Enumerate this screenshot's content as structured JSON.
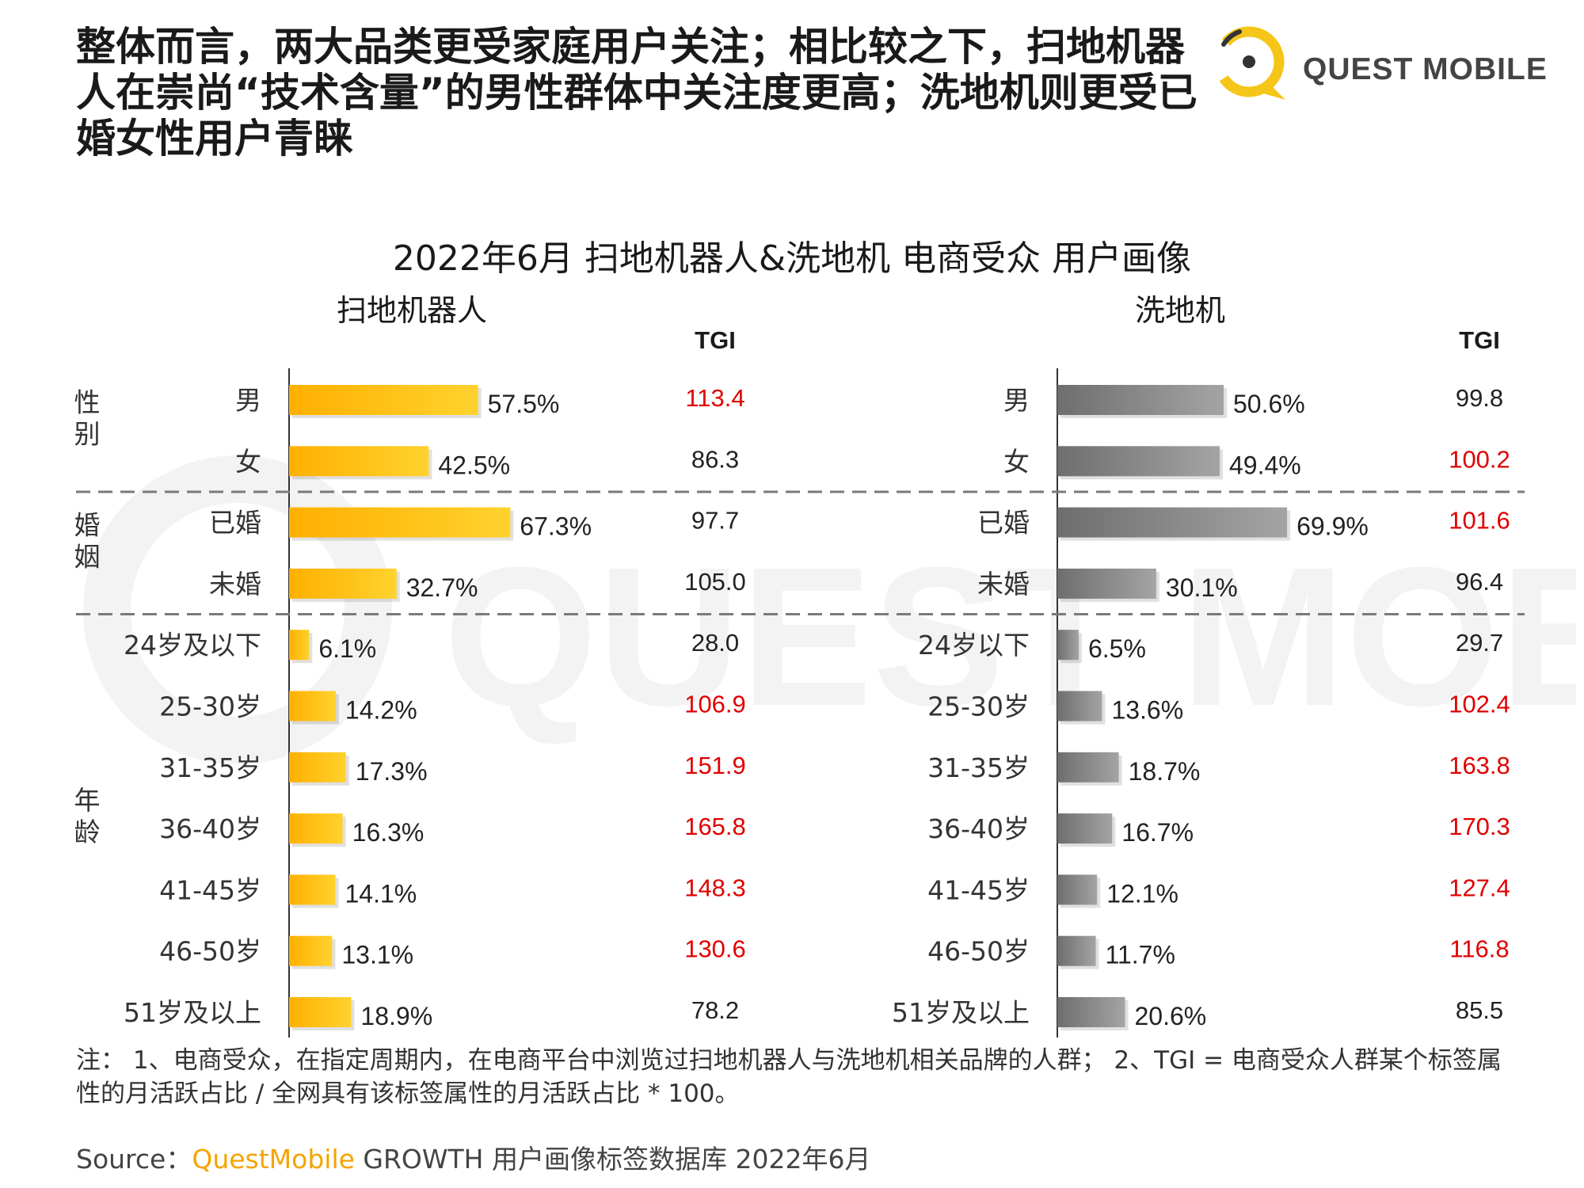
{
  "headline": "整体而言，两大品类更受家庭用户关注；相比较之下，扫地机器人在崇尚“技术含量”的男性群体中关注度更高；洗地机则更受已婚女性用户青睐",
  "logo": {
    "text": "QUEST MOBILE",
    "watermark_text": "QUEST MOBILE"
  },
  "colors": {
    "robot_bar": "#ffc21a",
    "washer_bar": "#8a8a8a",
    "tgi_highlight": "#e00000",
    "tgi_normal": "#222222",
    "brand": "#f5c518"
  },
  "chart_data": {
    "type": "bar",
    "title": "2022年6月 扫地机器人&洗地机 电商受众 用户画像",
    "groups": [
      {
        "label": "性别",
        "label_chars": [
          "性",
          "别"
        ]
      },
      {
        "label": "婚姻",
        "label_chars": [
          "婚",
          "姻"
        ]
      },
      {
        "label": "年龄",
        "label_chars": [
          "年",
          "龄"
        ]
      }
    ],
    "tgi_header": "TGI",
    "panels": [
      {
        "name": "扫地机器人",
        "rows": [
          {
            "category": "男",
            "value": 57.5,
            "label": "57.5%",
            "tgi": "113.4",
            "highlight": true
          },
          {
            "category": "女",
            "value": 42.5,
            "label": "42.5%",
            "tgi": "86.3",
            "highlight": false
          },
          {
            "category": "已婚",
            "value": 67.3,
            "label": "67.3%",
            "tgi": "97.7",
            "highlight": false
          },
          {
            "category": "未婚",
            "value": 32.7,
            "label": "32.7%",
            "tgi": "105.0",
            "highlight": false
          },
          {
            "category": "24岁及以下",
            "value": 6.1,
            "label": "6.1%",
            "tgi": "28.0",
            "highlight": false
          },
          {
            "category": "25-30岁",
            "value": 14.2,
            "label": "14.2%",
            "tgi": "106.9",
            "highlight": true
          },
          {
            "category": "31-35岁",
            "value": 17.3,
            "label": "17.3%",
            "tgi": "151.9",
            "highlight": true
          },
          {
            "category": "36-40岁",
            "value": 16.3,
            "label": "16.3%",
            "tgi": "165.8",
            "highlight": true
          },
          {
            "category": "41-45岁",
            "value": 14.1,
            "label": "14.1%",
            "tgi": "148.3",
            "highlight": true
          },
          {
            "category": "46-50岁",
            "value": 13.1,
            "label": "13.1%",
            "tgi": "130.6",
            "highlight": true
          },
          {
            "category": "51岁及以上",
            "value": 18.9,
            "label": "18.9%",
            "tgi": "78.2",
            "highlight": false
          }
        ]
      },
      {
        "name": "洗地机",
        "rows": [
          {
            "category": "男",
            "value": 50.6,
            "label": "50.6%",
            "tgi": "99.8",
            "highlight": false
          },
          {
            "category": "女",
            "value": 49.4,
            "label": "49.4%",
            "tgi": "100.2",
            "highlight": true
          },
          {
            "category": "已婚",
            "value": 69.9,
            "label": "69.9%",
            "tgi": "101.6",
            "highlight": true
          },
          {
            "category": "未婚",
            "value": 30.1,
            "label": "30.1%",
            "tgi": "96.4",
            "highlight": false
          },
          {
            "category": "24岁以下",
            "value": 6.5,
            "label": "6.5%",
            "tgi": "29.7",
            "highlight": false
          },
          {
            "category": "25-30岁",
            "value": 13.6,
            "label": "13.6%",
            "tgi": "102.4",
            "highlight": true
          },
          {
            "category": "31-35岁",
            "value": 18.7,
            "label": "18.7%",
            "tgi": "163.8",
            "highlight": true
          },
          {
            "category": "36-40岁",
            "value": 16.7,
            "label": "16.7%",
            "tgi": "170.3",
            "highlight": true
          },
          {
            "category": "41-45岁",
            "value": 12.1,
            "label": "12.1%",
            "tgi": "127.4",
            "highlight": true
          },
          {
            "category": "46-50岁",
            "value": 11.7,
            "label": "11.7%",
            "tgi": "116.8",
            "highlight": true
          },
          {
            "category": "51岁及以上",
            "value": 20.6,
            "label": "20.6%",
            "tgi": "85.5",
            "highlight": false
          }
        ]
      }
    ]
  },
  "footnote": "注： 1、电商受众，在指定周期内，在电商平台中浏览过扫地机器人与洗地机相关品牌的人群； 2、TGI = 电商受众人群某个标签属性的月活跃占比 / 全网具有该标签属性的月活跃占比 * 100。",
  "source": {
    "prefix": "Source：",
    "brand": "QuestMobile",
    "rest": " GROWTH 用户画像标签数据库 2022年6月"
  }
}
